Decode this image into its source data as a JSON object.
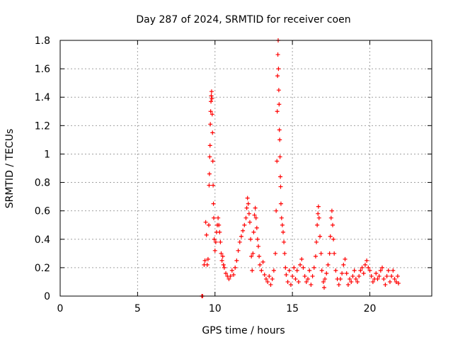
{
  "chart_data": {
    "type": "scatter",
    "title": "Day 287 of 2024, SRMTID for receiver coen",
    "xlabel": "GPS time / hours",
    "ylabel": "SRMTID / TECUs",
    "xlim": [
      0,
      24
    ],
    "ylim": [
      0,
      1.8
    ],
    "xticks": [
      0,
      5,
      10,
      15,
      20
    ],
    "yticks": [
      0,
      0.2,
      0.4,
      0.6,
      0.8,
      1,
      1.2,
      1.4,
      1.6,
      1.8
    ],
    "ytick_labels": [
      "0",
      "0.2",
      "0.4",
      "0.6",
      "0.8",
      "1",
      "1.2",
      "1.4",
      "1.6",
      "1.8"
    ],
    "grid": true,
    "marker": "+",
    "series": [
      {
        "name": "SRMTID",
        "color": "#ff0000",
        "points": [
          [
            9.15,
            0.0
          ],
          [
            9.2,
            0.0
          ],
          [
            9.3,
            0.22
          ],
          [
            9.35,
            0.25
          ],
          [
            9.4,
            0.52
          ],
          [
            9.45,
            0.43
          ],
          [
            9.5,
            0.22
          ],
          [
            9.55,
            0.26
          ],
          [
            9.6,
            0.5
          ],
          [
            9.62,
            0.78
          ],
          [
            9.64,
            0.86
          ],
          [
            9.66,
            0.98
          ],
          [
            9.68,
            1.06
          ],
          [
            9.7,
            1.21
          ],
          [
            9.72,
            1.3
          ],
          [
            9.74,
            1.37
          ],
          [
            9.76,
            1.41
          ],
          [
            9.78,
            1.44
          ],
          [
            9.8,
            1.39
          ],
          [
            9.82,
            1.28
          ],
          [
            9.84,
            1.15
          ],
          [
            9.86,
            0.95
          ],
          [
            9.88,
            0.78
          ],
          [
            9.9,
            0.65
          ],
          [
            9.92,
            0.55
          ],
          [
            9.95,
            0.4
          ],
          [
            10.0,
            0.32
          ],
          [
            10.05,
            0.38
          ],
          [
            10.1,
            0.45
          ],
          [
            10.15,
            0.5
          ],
          [
            10.2,
            0.55
          ],
          [
            10.25,
            0.5
          ],
          [
            10.3,
            0.45
          ],
          [
            10.35,
            0.38
          ],
          [
            10.4,
            0.3
          ],
          [
            10.45,
            0.25
          ],
          [
            10.5,
            0.28
          ],
          [
            10.55,
            0.22
          ],
          [
            10.6,
            0.2
          ],
          [
            10.7,
            0.16
          ],
          [
            10.8,
            0.14
          ],
          [
            10.9,
            0.12
          ],
          [
            11.0,
            0.14
          ],
          [
            11.1,
            0.18
          ],
          [
            11.2,
            0.15
          ],
          [
            11.3,
            0.2
          ],
          [
            11.4,
            0.25
          ],
          [
            11.5,
            0.32
          ],
          [
            11.6,
            0.38
          ],
          [
            11.7,
            0.42
          ],
          [
            11.8,
            0.46
          ],
          [
            11.9,
            0.5
          ],
          [
            12.0,
            0.55
          ],
          [
            12.05,
            0.62
          ],
          [
            12.1,
            0.69
          ],
          [
            12.15,
            0.65
          ],
          [
            12.2,
            0.58
          ],
          [
            12.25,
            0.52
          ],
          [
            12.3,
            0.4
          ],
          [
            12.35,
            0.28
          ],
          [
            12.4,
            0.18
          ],
          [
            12.45,
            0.3
          ],
          [
            12.5,
            0.45
          ],
          [
            12.55,
            0.57
          ],
          [
            12.6,
            0.62
          ],
          [
            12.65,
            0.55
          ],
          [
            12.7,
            0.48
          ],
          [
            12.75,
            0.4
          ],
          [
            12.8,
            0.35
          ],
          [
            12.85,
            0.28
          ],
          [
            12.9,
            0.22
          ],
          [
            13.0,
            0.18
          ],
          [
            13.1,
            0.24
          ],
          [
            13.2,
            0.15
          ],
          [
            13.3,
            0.12
          ],
          [
            13.4,
            0.1
          ],
          [
            13.5,
            0.14
          ],
          [
            13.6,
            0.08
          ],
          [
            13.7,
            0.12
          ],
          [
            13.8,
            0.18
          ],
          [
            13.9,
            0.3
          ],
          [
            13.95,
            0.6
          ],
          [
            14.0,
            0.95
          ],
          [
            14.02,
            1.3
          ],
          [
            14.04,
            1.55
          ],
          [
            14.06,
            1.7
          ],
          [
            14.08,
            1.8
          ],
          [
            14.1,
            1.6
          ],
          [
            14.12,
            1.45
          ],
          [
            14.14,
            1.35
          ],
          [
            14.16,
            1.17
          ],
          [
            14.18,
            1.1
          ],
          [
            14.2,
            0.98
          ],
          [
            14.22,
            0.84
          ],
          [
            14.24,
            0.77
          ],
          [
            14.26,
            0.65
          ],
          [
            14.3,
            0.55
          ],
          [
            14.35,
            0.5
          ],
          [
            14.4,
            0.45
          ],
          [
            14.45,
            0.38
          ],
          [
            14.5,
            0.3
          ],
          [
            14.55,
            0.2
          ],
          [
            14.6,
            0.15
          ],
          [
            14.7,
            0.1
          ],
          [
            14.8,
            0.18
          ],
          [
            14.9,
            0.08
          ],
          [
            15.0,
            0.14
          ],
          [
            15.1,
            0.2
          ],
          [
            15.2,
            0.12
          ],
          [
            15.3,
            0.18
          ],
          [
            15.4,
            0.1
          ],
          [
            15.5,
            0.22
          ],
          [
            15.6,
            0.26
          ],
          [
            15.7,
            0.2
          ],
          [
            15.8,
            0.14
          ],
          [
            15.9,
            0.1
          ],
          [
            16.0,
            0.12
          ],
          [
            16.1,
            0.18
          ],
          [
            16.2,
            0.08
          ],
          [
            16.3,
            0.14
          ],
          [
            16.4,
            0.2
          ],
          [
            16.5,
            0.28
          ],
          [
            16.55,
            0.38
          ],
          [
            16.6,
            0.5
          ],
          [
            16.65,
            0.58
          ],
          [
            16.68,
            0.63
          ],
          [
            16.72,
            0.55
          ],
          [
            16.78,
            0.42
          ],
          [
            16.85,
            0.3
          ],
          [
            16.9,
            0.18
          ],
          [
            17.0,
            0.1
          ],
          [
            17.05,
            0.06
          ],
          [
            17.1,
            0.12
          ],
          [
            17.2,
            0.16
          ],
          [
            17.3,
            0.22
          ],
          [
            17.4,
            0.3
          ],
          [
            17.45,
            0.42
          ],
          [
            17.5,
            0.55
          ],
          [
            17.55,
            0.6
          ],
          [
            17.6,
            0.5
          ],
          [
            17.65,
            0.4
          ],
          [
            17.7,
            0.3
          ],
          [
            17.8,
            0.18
          ],
          [
            17.9,
            0.12
          ],
          [
            18.0,
            0.08
          ],
          [
            18.1,
            0.12
          ],
          [
            18.2,
            0.16
          ],
          [
            18.3,
            0.22
          ],
          [
            18.4,
            0.26
          ],
          [
            18.5,
            0.16
          ],
          [
            18.6,
            0.08
          ],
          [
            18.7,
            0.12
          ],
          [
            18.8,
            0.1
          ],
          [
            18.9,
            0.14
          ],
          [
            19.0,
            0.18
          ],
          [
            19.1,
            0.12
          ],
          [
            19.2,
            0.1
          ],
          [
            19.3,
            0.14
          ],
          [
            19.4,
            0.18
          ],
          [
            19.5,
            0.2
          ],
          [
            19.6,
            0.16
          ],
          [
            19.7,
            0.22
          ],
          [
            19.8,
            0.25
          ],
          [
            19.9,
            0.2
          ],
          [
            20.0,
            0.18
          ],
          [
            20.1,
            0.14
          ],
          [
            20.2,
            0.1
          ],
          [
            20.3,
            0.12
          ],
          [
            20.4,
            0.16
          ],
          [
            20.5,
            0.12
          ],
          [
            20.6,
            0.14
          ],
          [
            20.7,
            0.18
          ],
          [
            20.8,
            0.2
          ],
          [
            20.9,
            0.12
          ],
          [
            21.0,
            0.08
          ],
          [
            21.1,
            0.14
          ],
          [
            21.2,
            0.18
          ],
          [
            21.3,
            0.1
          ],
          [
            21.4,
            0.14
          ],
          [
            21.5,
            0.18
          ],
          [
            21.6,
            0.12
          ],
          [
            21.7,
            0.1
          ],
          [
            21.8,
            0.14
          ],
          [
            21.85,
            0.09
          ]
        ]
      }
    ]
  }
}
